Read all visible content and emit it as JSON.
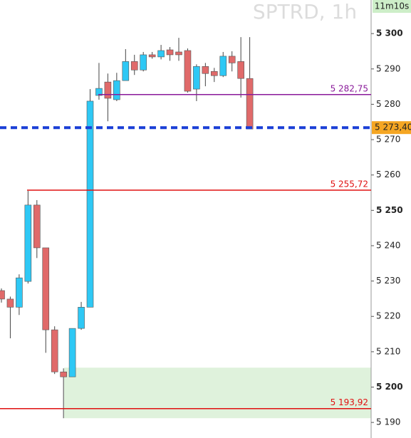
{
  "chart_data": {
    "type": "candlestick",
    "title": "SPTRD, 1h",
    "timer": "11m10s",
    "up_color": "#2ec8f5",
    "down_color": "#e06a6a",
    "series": [
      {
        "open": [
          5227.3,
          5224.9,
          5222.6,
          5229.9,
          5251.5,
          5239.4,
          5216.2,
          5204.3,
          5202.9,
          5216.6,
          5222.6,
          5282.5,
          5286.3,
          5281.3,
          5286.7,
          5292.1,
          5289.7,
          5294.0,
          5293.4,
          5295.4,
          5294.8,
          5295.2,
          5284.3,
          5290.7,
          5289.3,
          5288.1,
          5293.6,
          5292.1,
          5287.3
        ],
        "high": [
          5227.9,
          5225.6,
          5231.9,
          5255.5,
          5252.9,
          5239.4,
          5217.2,
          5205.3,
          5216.6,
          5224.1,
          5284.3,
          5291.7,
          5288.7,
          5288.9,
          5295.6,
          5294.0,
          5294.8,
          5294.8,
          5296.8,
          5296.2,
          5298.8,
          5295.8,
          5291.3,
          5291.7,
          5290.3,
          5294.8,
          5295.0,
          5299.0,
          5299.0
        ],
        "low": [
          5223.9,
          5213.8,
          5220.4,
          5229.3,
          5236.5,
          5209.7,
          5203.7,
          5191.2,
          5202.9,
          5216.2,
          5222.6,
          5281.3,
          5275.2,
          5280.9,
          5286.7,
          5288.3,
          5289.3,
          5292.9,
          5292.7,
          5292.3,
          5292.3,
          5283.3,
          5280.9,
          5285.1,
          5286.3,
          5287.7,
          5289.3,
          5281.9,
          5273.0
        ],
        "close": [
          5224.9,
          5222.6,
          5230.9,
          5251.5,
          5239.4,
          5216.2,
          5204.3,
          5202.9,
          5216.6,
          5222.6,
          5280.9,
          5284.5,
          5281.7,
          5286.7,
          5292.1,
          5289.7,
          5294.0,
          5293.4,
          5295.2,
          5294.0,
          5294.0,
          5283.7,
          5290.7,
          5288.7,
          5288.1,
          5293.6,
          5291.7,
          5287.3,
          5273.0
        ]
      }
    ],
    "ylim": [
      5185.6,
      5309.5
    ],
    "yticks": [
      {
        "value": 5190,
        "label": "5 190"
      },
      {
        "value": 5200,
        "label": "5 200"
      },
      {
        "value": 5210,
        "label": "5 210"
      },
      {
        "value": 5220,
        "label": "5 220"
      },
      {
        "value": 5230,
        "label": "5 230"
      },
      {
        "value": 5240,
        "label": "5 240"
      },
      {
        "value": 5250,
        "label": "5 250"
      },
      {
        "value": 5260,
        "label": "5 260"
      },
      {
        "value": 5270,
        "label": "5 270"
      },
      {
        "value": 5280,
        "label": "5 280"
      },
      {
        "value": 5290,
        "label": "5 290"
      },
      {
        "value": 5300,
        "label": "5 300"
      }
    ],
    "levels": [
      {
        "value": 5282.75,
        "label": "5 282,75",
        "color": "#8a1a9a",
        "style": "solid"
      },
      {
        "value": 5273.4,
        "label": "5 273,40",
        "color": "#1a3fd6",
        "style": "dashed"
      },
      {
        "value": 5255.72,
        "label": "5 255,72",
        "color": "#e01010",
        "style": "solid"
      },
      {
        "value": 5193.92,
        "label": "5 193,92",
        "color": "#e01010",
        "style": "solid"
      }
    ],
    "zone": {
      "low": 5191.2,
      "high": 5205.5,
      "color": "#dff2dc"
    }
  }
}
